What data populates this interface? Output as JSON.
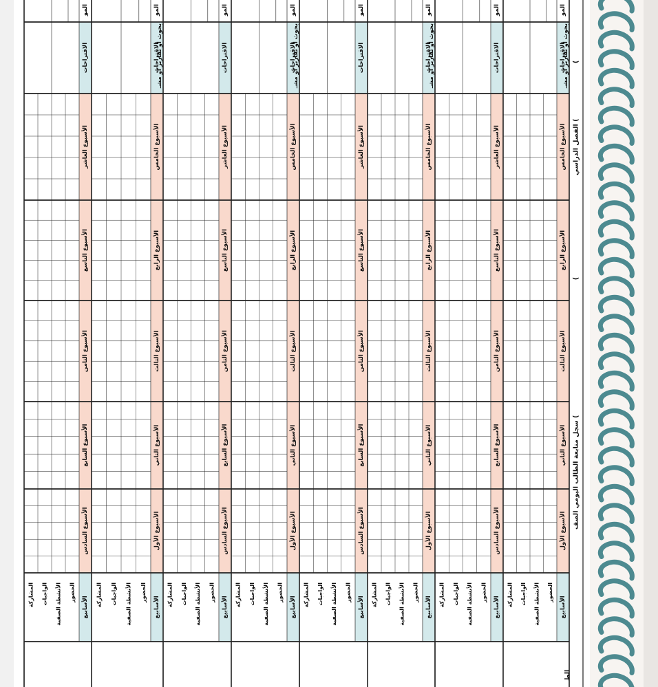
{
  "document": {
    "title": "سجل متابعة الطالب اليومي الصف (",
    "semester_label": "الفصل الدراسي (",
    "paren_open": "(",
    "side_label": "الط"
  },
  "row_labels": {
    "weeks": "الأسابيع",
    "attendance": "الحضور",
    "activities": "الأنشطة الصفية",
    "homework": "الواجبات",
    "participation": "المشاركة"
  },
  "extra_labels": {
    "research": "بحوث أو تقارير أو مشـ",
    "suggestions": "الاقتراحات",
    "notes_short": "المو"
  },
  "week_sets": [
    [
      "الأسبوع الأول",
      "الأسبوع الثاني",
      "الأسبوع الثالث",
      "الأسبوع الرابع",
      "الأسبوع الخامس"
    ],
    [
      "الأسبوع السادس",
      "الأسبوع السابع",
      "الأسبوع الثامن",
      "الأسبوع التاسع",
      "الأسبوع العاشر"
    ]
  ],
  "colors": {
    "week_header": "#f9d9cc",
    "side_header": "#d3e9eb",
    "ring": "#4d8a90",
    "attendance": "#cc1f1f",
    "activities": "#1a3fae",
    "homework": "#2e8b2e",
    "participation": "#1a1a1a"
  },
  "icons": [
    "spiral-binding-icon"
  ]
}
